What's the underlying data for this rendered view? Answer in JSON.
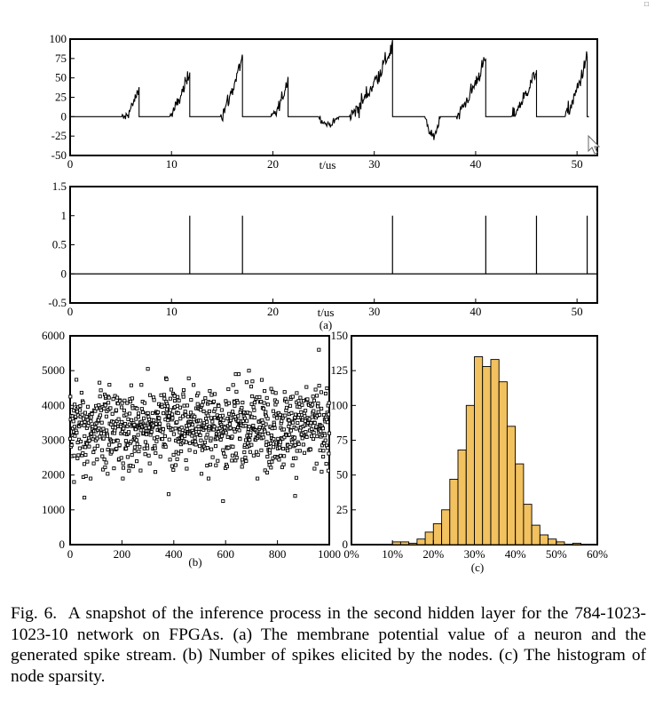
{
  "corner_mark": "□",
  "caption": {
    "label": "Fig. 6.",
    "text": "A snapshot of the inference process in the second hidden layer for the 784-1023-1023-10 network on FPGAs. (a) The membrane potential value of a neuron and the generated spike stream. (b) Number of spikes elicited by the nodes. (c) The histogram of node sparsity."
  },
  "colors": {
    "hist_fill": "#f2c160",
    "line": "#000000"
  },
  "chart_data": [
    {
      "id": "membrane",
      "type": "line",
      "xlabel": "t/us",
      "ylabel": "",
      "xlim": [
        0,
        52
      ],
      "ylim": [
        -50,
        100
      ],
      "xticks": [
        0,
        10,
        20,
        30,
        40,
        50
      ],
      "yticks": [
        -50,
        -25,
        0,
        25,
        50,
        75,
        100
      ],
      "ramps": [
        {
          "start": 5.1,
          "end": 6.8,
          "peak": 38,
          "dip": -8
        },
        {
          "start": 9.8,
          "end": 11.8,
          "peak": 57,
          "dip": 0
        },
        {
          "start": 14.8,
          "end": 17.0,
          "peak": 77,
          "dip": 0
        },
        {
          "start": 19.8,
          "end": 21.5,
          "peak": 50,
          "dip": -5
        },
        {
          "start": 24.5,
          "end": 26.5,
          "peak": -10,
          "dip": -10
        },
        {
          "start": 27.5,
          "end": 31.8,
          "peak": 90,
          "dip": 0
        },
        {
          "start": 35.0,
          "end": 36.5,
          "peak": -25,
          "dip": -25
        },
        {
          "start": 38.0,
          "end": 41.0,
          "peak": 75,
          "dip": 0
        },
        {
          "start": 43.5,
          "end": 46.0,
          "peak": 60,
          "dip": 0
        },
        {
          "start": 48.8,
          "end": 51.0,
          "peak": 77,
          "dip": 0
        }
      ]
    },
    {
      "id": "spikes",
      "type": "line",
      "xlabel": "t/us",
      "sublabel": "(a)",
      "xlim": [
        0,
        52
      ],
      "ylim": [
        -0.5,
        1.5
      ],
      "xticks": [
        0,
        10,
        20,
        30,
        40,
        50
      ],
      "yticks": [
        -0.5,
        0,
        0.5,
        1.0,
        1.5
      ],
      "spike_times": [
        11.8,
        17.0,
        31.8,
        41.0,
        46.0,
        51.0
      ],
      "spike_height": 1.0
    },
    {
      "id": "spike-count",
      "type": "scatter",
      "sublabel": "(b)",
      "xlim": [
        0,
        1000
      ],
      "ylim": [
        0,
        6000
      ],
      "xticks": [
        0,
        200,
        400,
        600,
        800,
        1000
      ],
      "yticks": [
        0,
        1000,
        2000,
        3000,
        4000,
        5000,
        6000
      ],
      "n_points": 1023,
      "mean": 3400,
      "spread": 560,
      "outliers": [
        {
          "x": 15,
          "y": 1800
        },
        {
          "x": 55,
          "y": 1350
        },
        {
          "x": 380,
          "y": 1450
        },
        {
          "x": 590,
          "y": 1250
        },
        {
          "x": 868,
          "y": 1400
        },
        {
          "x": 690,
          "y": 5000
        },
        {
          "x": 300,
          "y": 5050
        },
        {
          "x": 960,
          "y": 5600
        }
      ]
    },
    {
      "id": "sparsity-hist",
      "type": "bar",
      "sublabel": "(c)",
      "xlim": [
        0,
        0.6
      ],
      "ylim": [
        0,
        150
      ],
      "xticks": [
        "0%",
        "10%",
        "20%",
        "30%",
        "40%",
        "50%",
        "60%"
      ],
      "yticks": [
        0,
        25,
        50,
        75,
        100,
        125,
        150
      ],
      "bin_width": 0.02,
      "bins": [
        {
          "start": 0.1,
          "count": 2
        },
        {
          "start": 0.12,
          "count": 2
        },
        {
          "start": 0.14,
          "count": 1
        },
        {
          "start": 0.16,
          "count": 4
        },
        {
          "start": 0.18,
          "count": 9
        },
        {
          "start": 0.2,
          "count": 15
        },
        {
          "start": 0.22,
          "count": 25
        },
        {
          "start": 0.24,
          "count": 47
        },
        {
          "start": 0.26,
          "count": 68
        },
        {
          "start": 0.28,
          "count": 100
        },
        {
          "start": 0.3,
          "count": 135
        },
        {
          "start": 0.32,
          "count": 128
        },
        {
          "start": 0.34,
          "count": 133
        },
        {
          "start": 0.36,
          "count": 117
        },
        {
          "start": 0.38,
          "count": 85
        },
        {
          "start": 0.4,
          "count": 58
        },
        {
          "start": 0.42,
          "count": 29
        },
        {
          "start": 0.44,
          "count": 14
        },
        {
          "start": 0.46,
          "count": 7
        },
        {
          "start": 0.48,
          "count": 4
        },
        {
          "start": 0.5,
          "count": 2
        },
        {
          "start": 0.54,
          "count": 1
        }
      ]
    }
  ]
}
